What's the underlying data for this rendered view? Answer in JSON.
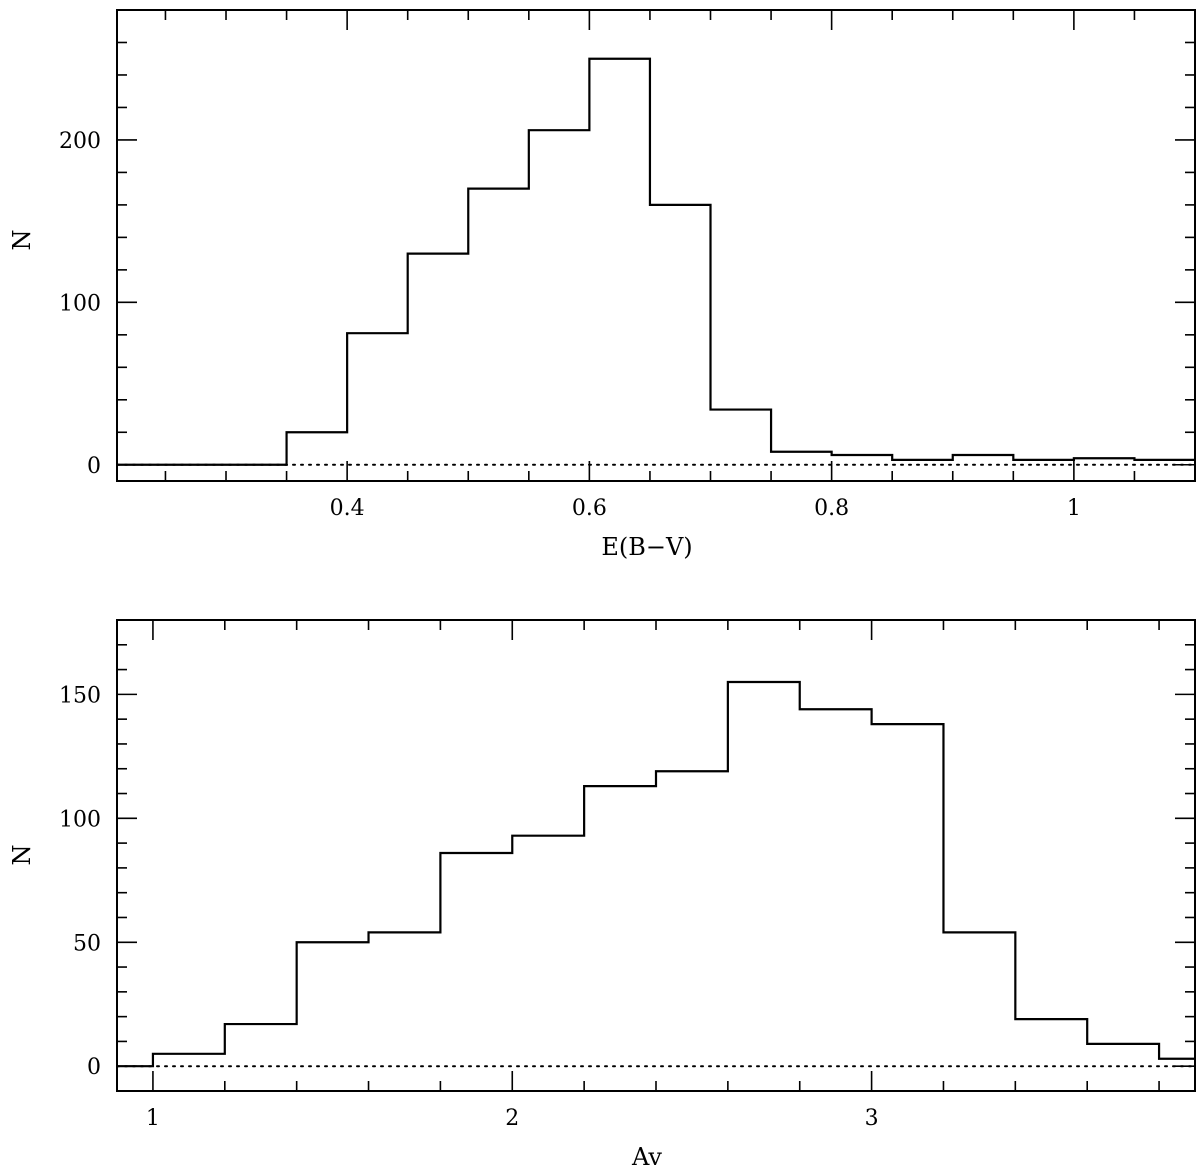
{
  "chart_data": [
    {
      "type": "histogram",
      "xlabel": "E(B−V)",
      "ylabel": "N",
      "xlim": [
        0.21,
        1.1
      ],
      "ylim": [
        -10,
        280
      ],
      "xticks": [
        0.4,
        0.6,
        0.8,
        1
      ],
      "xtick_labels": [
        "0.4",
        "0.6",
        "0.8",
        "1"
      ],
      "yticks": [
        0,
        100,
        200
      ],
      "ytick_labels": [
        "0",
        "100",
        "200"
      ],
      "x_minor_step": 0.05,
      "y_minor_step": 20,
      "zero_line": "dotted",
      "bin_edges": [
        0.25,
        0.3,
        0.35,
        0.4,
        0.45,
        0.5,
        0.55,
        0.6,
        0.65,
        0.7,
        0.75,
        0.8,
        0.85,
        0.9,
        0.95,
        1.0,
        1.05,
        1.1
      ],
      "counts": [
        0,
        0,
        20,
        81,
        130,
        170,
        206,
        250,
        160,
        34,
        8,
        6,
        3,
        6,
        3,
        4,
        3
      ],
      "left_baseline_from": 0.21
    },
    {
      "type": "histogram",
      "xlabel": "Av",
      "ylabel": "N",
      "xlim": [
        0.9,
        3.9
      ],
      "ylim": [
        -10,
        180
      ],
      "xticks": [
        1,
        2,
        3
      ],
      "xtick_labels": [
        "1",
        "2",
        "3"
      ],
      "yticks": [
        0,
        50,
        100,
        150
      ],
      "ytick_labels": [
        "0",
        "50",
        "100",
        "150"
      ],
      "x_minor_step": 0.2,
      "y_minor_step": 10,
      "zero_line": "dotted",
      "bin_edges": [
        1.0,
        1.2,
        1.4,
        1.6,
        1.8,
        2.0,
        2.2,
        2.4,
        2.6,
        2.8,
        3.0,
        3.2,
        3.4,
        3.6,
        3.8,
        3.9
      ],
      "counts": [
        5,
        17,
        50,
        54,
        86,
        93,
        113,
        119,
        155,
        144,
        138,
        54,
        19,
        9,
        3
      ],
      "left_baseline_from": 0.9
    }
  ]
}
